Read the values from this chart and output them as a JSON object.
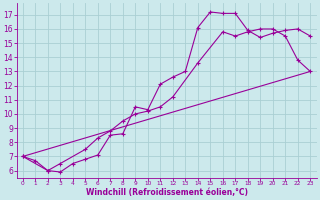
{
  "background_color": "#cce9ec",
  "grid_color": "#aacfd4",
  "line_color": "#990099",
  "xlabel": "Windchill (Refroidissement éolien,°C)",
  "tick_color": "#990099",
  "xlim": [
    -0.5,
    23.5
  ],
  "ylim": [
    5.5,
    17.8
  ],
  "xticks": [
    0,
    1,
    2,
    3,
    4,
    5,
    6,
    7,
    8,
    9,
    10,
    11,
    12,
    13,
    14,
    15,
    16,
    17,
    18,
    19,
    20,
    21,
    22,
    23
  ],
  "yticks": [
    6,
    7,
    8,
    9,
    10,
    11,
    12,
    13,
    14,
    15,
    16,
    17
  ],
  "series1_x": [
    0,
    1,
    2,
    3,
    4,
    5,
    6,
    7,
    8,
    9,
    10,
    11,
    12,
    13,
    14,
    15,
    16,
    17,
    18,
    19,
    20,
    21,
    22,
    23
  ],
  "series1_y": [
    7.0,
    6.7,
    6.0,
    5.9,
    6.5,
    6.8,
    7.1,
    8.5,
    8.6,
    10.5,
    10.3,
    12.1,
    12.6,
    13.0,
    16.1,
    17.2,
    17.1,
    17.1,
    15.9,
    15.4,
    15.7,
    15.9,
    16.0,
    15.5
  ],
  "series2_x": [
    0,
    2,
    3,
    5,
    6,
    7,
    8,
    9,
    10,
    11,
    12,
    14,
    16,
    17,
    18,
    19,
    20,
    21,
    22,
    23
  ],
  "series2_y": [
    7.0,
    6.0,
    6.5,
    7.5,
    8.3,
    8.8,
    9.5,
    10.0,
    10.2,
    10.5,
    11.2,
    13.6,
    15.8,
    15.5,
    15.8,
    16.0,
    16.0,
    15.5,
    13.8,
    13.0
  ],
  "series3_x": [
    0,
    23
  ],
  "series3_y": [
    7.0,
    13.0
  ],
  "figwidth": 3.2,
  "figheight": 2.0,
  "dpi": 100
}
